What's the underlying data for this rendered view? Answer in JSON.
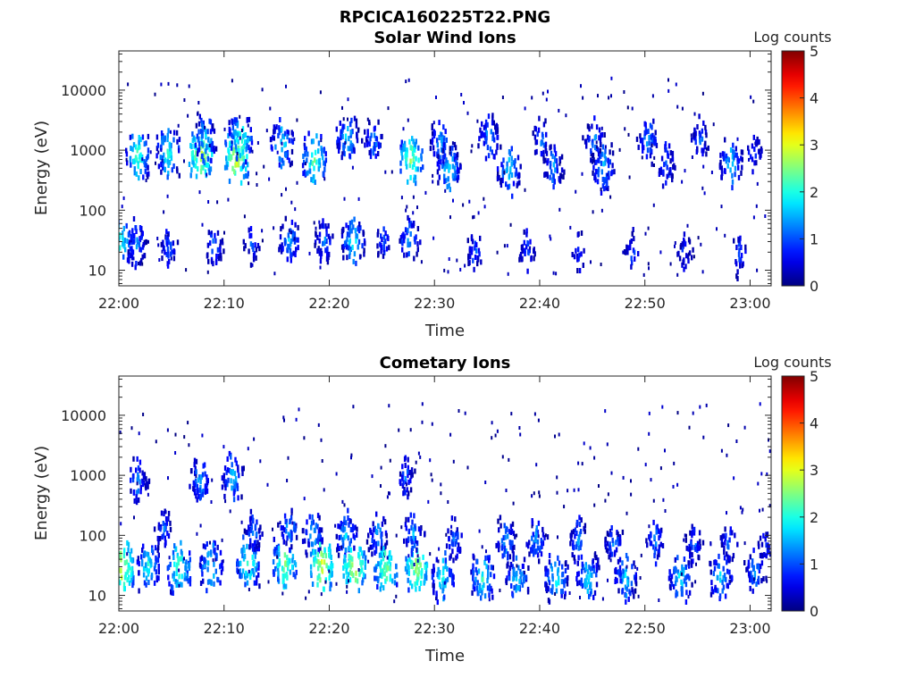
{
  "figure": {
    "title": "RPCICA160225T22.PNG"
  },
  "chart_data": [
    {
      "type": "heatmap",
      "title": "Solar Wind Ions",
      "xlabel": "Time",
      "ylabel": "Energy (eV)",
      "x_ticks": [
        "22:00",
        "22:10",
        "22:20",
        "22:30",
        "22:40",
        "22:50",
        "23:00"
      ],
      "x_tick_minutes": [
        0,
        10,
        20,
        30,
        40,
        50,
        60
      ],
      "xlim_minutes": [
        0,
        62
      ],
      "y_scale": "log",
      "y_ticks": [
        "10",
        "100",
        "1000",
        "10000"
      ],
      "y_tick_values": [
        10,
        100,
        1000,
        10000
      ],
      "ylim": [
        5.5,
        45000
      ],
      "colorbar": {
        "label": "Log counts",
        "min": 0,
        "max": 5,
        "ticks": [
          "0",
          "1",
          "2",
          "3",
          "4",
          "5"
        ],
        "colormap": "jet"
      },
      "clusters": [
        {
          "t": 0.2,
          "e": 30,
          "v": 2.1
        },
        {
          "t": 1.8,
          "e": 800,
          "v": 2.3
        },
        {
          "t": 1.7,
          "e": 28,
          "v": 1.4
        },
        {
          "t": 4.7,
          "e": 900,
          "v": 2.1
        },
        {
          "t": 4.7,
          "e": 25,
          "v": 1.2
        },
        {
          "t": 7.8,
          "e": 850,
          "v": 2.9
        },
        {
          "t": 8.2,
          "e": 1500,
          "v": 1.8
        },
        {
          "t": 9.0,
          "e": 25,
          "v": 1.3
        },
        {
          "t": 11.2,
          "e": 750,
          "v": 3.0
        },
        {
          "t": 11.6,
          "e": 1500,
          "v": 2.2
        },
        {
          "t": 12.7,
          "e": 28,
          "v": 1.1
        },
        {
          "t": 15.5,
          "e": 1300,
          "v": 1.9
        },
        {
          "t": 16.2,
          "e": 30,
          "v": 1.6
        },
        {
          "t": 18.6,
          "e": 700,
          "v": 2.4
        },
        {
          "t": 19.5,
          "e": 30,
          "v": 1.3
        },
        {
          "t": 21.7,
          "e": 1500,
          "v": 1.8
        },
        {
          "t": 22.3,
          "e": 30,
          "v": 1.9
        },
        {
          "t": 24.2,
          "e": 1400,
          "v": 1.4
        },
        {
          "t": 25.2,
          "e": 30,
          "v": 1.1
        },
        {
          "t": 27.8,
          "e": 700,
          "v": 2.6
        },
        {
          "t": 27.6,
          "e": 30,
          "v": 1.5
        },
        {
          "t": 30.6,
          "e": 1400,
          "v": 1.5
        },
        {
          "t": 31.4,
          "e": 500,
          "v": 1.9
        },
        {
          "t": 33.8,
          "e": 20,
          "v": 1.2
        },
        {
          "t": 35.2,
          "e": 1600,
          "v": 1.6
        },
        {
          "t": 37.1,
          "e": 450,
          "v": 1.8
        },
        {
          "t": 38.8,
          "e": 20,
          "v": 1.1
        },
        {
          "t": 40.2,
          "e": 1500,
          "v": 1.3
        },
        {
          "t": 41.3,
          "e": 500,
          "v": 1.5
        },
        {
          "t": 43.8,
          "e": 20,
          "v": 1.0
        },
        {
          "t": 45.2,
          "e": 1500,
          "v": 1.4
        },
        {
          "t": 46.1,
          "e": 500,
          "v": 1.7
        },
        {
          "t": 48.8,
          "e": 20,
          "v": 1.0
        },
        {
          "t": 50.3,
          "e": 1500,
          "v": 1.5
        },
        {
          "t": 52.0,
          "e": 550,
          "v": 1.3
        },
        {
          "t": 53.8,
          "e": 20,
          "v": 1.0
        },
        {
          "t": 55.3,
          "e": 1500,
          "v": 1.2
        },
        {
          "t": 58.2,
          "e": 600,
          "v": 1.8
        },
        {
          "t": 59.0,
          "e": 20,
          "v": 1.1
        },
        {
          "t": 60.4,
          "e": 900,
          "v": 1.1
        }
      ]
    },
    {
      "type": "heatmap",
      "title": "Cometary Ions",
      "xlabel": "Time",
      "ylabel": "Energy (eV)",
      "x_ticks": [
        "22:00",
        "22:10",
        "22:20",
        "22:30",
        "22:40",
        "22:50",
        "23:00"
      ],
      "x_tick_minutes": [
        0,
        10,
        20,
        30,
        40,
        50,
        60
      ],
      "xlim_minutes": [
        0,
        62
      ],
      "y_scale": "log",
      "y_ticks": [
        "10",
        "100",
        "1000",
        "10000"
      ],
      "y_tick_values": [
        10,
        100,
        1000,
        10000
      ],
      "ylim": [
        5.5,
        45000
      ],
      "colorbar": {
        "label": "Log counts",
        "min": 0,
        "max": 5,
        "ticks": [
          "0",
          "1",
          "2",
          "3",
          "4",
          "5"
        ],
        "colormap": "jet"
      },
      "clusters": [
        {
          "t": 0.3,
          "e": 30,
          "v": 3.0
        },
        {
          "t": 1.8,
          "e": 800,
          "v": 1.4
        },
        {
          "t": 2.8,
          "e": 30,
          "v": 2.0
        },
        {
          "t": 4.3,
          "e": 120,
          "v": 1.2
        },
        {
          "t": 5.7,
          "e": 30,
          "v": 2.4
        },
        {
          "t": 7.7,
          "e": 800,
          "v": 1.6
        },
        {
          "t": 8.8,
          "e": 30,
          "v": 2.0
        },
        {
          "t": 10.8,
          "e": 900,
          "v": 1.7
        },
        {
          "t": 12.3,
          "e": 35,
          "v": 2.3
        },
        {
          "t": 12.8,
          "e": 110,
          "v": 1.3
        },
        {
          "t": 15.8,
          "e": 35,
          "v": 2.6
        },
        {
          "t": 16.2,
          "e": 140,
          "v": 1.5
        },
        {
          "t": 18.5,
          "e": 100,
          "v": 1.6
        },
        {
          "t": 19.3,
          "e": 30,
          "v": 3.0
        },
        {
          "t": 21.6,
          "e": 100,
          "v": 1.7
        },
        {
          "t": 22.4,
          "e": 30,
          "v": 2.9
        },
        {
          "t": 24.6,
          "e": 100,
          "v": 1.5
        },
        {
          "t": 25.4,
          "e": 30,
          "v": 2.6
        },
        {
          "t": 27.3,
          "e": 900,
          "v": 1.2
        },
        {
          "t": 28.3,
          "e": 30,
          "v": 2.8
        },
        {
          "t": 28.0,
          "e": 110,
          "v": 1.5
        },
        {
          "t": 30.8,
          "e": 20,
          "v": 2.0
        },
        {
          "t": 31.9,
          "e": 80,
          "v": 1.3
        },
        {
          "t": 34.6,
          "e": 20,
          "v": 2.1
        },
        {
          "t": 36.8,
          "e": 80,
          "v": 1.5
        },
        {
          "t": 37.9,
          "e": 20,
          "v": 1.8
        },
        {
          "t": 39.7,
          "e": 80,
          "v": 1.5
        },
        {
          "t": 41.6,
          "e": 20,
          "v": 2.0
        },
        {
          "t": 43.7,
          "e": 80,
          "v": 1.4
        },
        {
          "t": 44.6,
          "e": 20,
          "v": 1.9
        },
        {
          "t": 47.0,
          "e": 80,
          "v": 1.3
        },
        {
          "t": 48.2,
          "e": 20,
          "v": 1.8
        },
        {
          "t": 51.0,
          "e": 80,
          "v": 1.3
        },
        {
          "t": 53.4,
          "e": 20,
          "v": 1.9
        },
        {
          "t": 54.7,
          "e": 70,
          "v": 1.2
        },
        {
          "t": 57.2,
          "e": 20,
          "v": 1.8
        },
        {
          "t": 58.0,
          "e": 70,
          "v": 1.2
        },
        {
          "t": 60.5,
          "e": 25,
          "v": 1.5
        },
        {
          "t": 61.4,
          "e": 60,
          "v": 1.0
        }
      ]
    }
  ]
}
